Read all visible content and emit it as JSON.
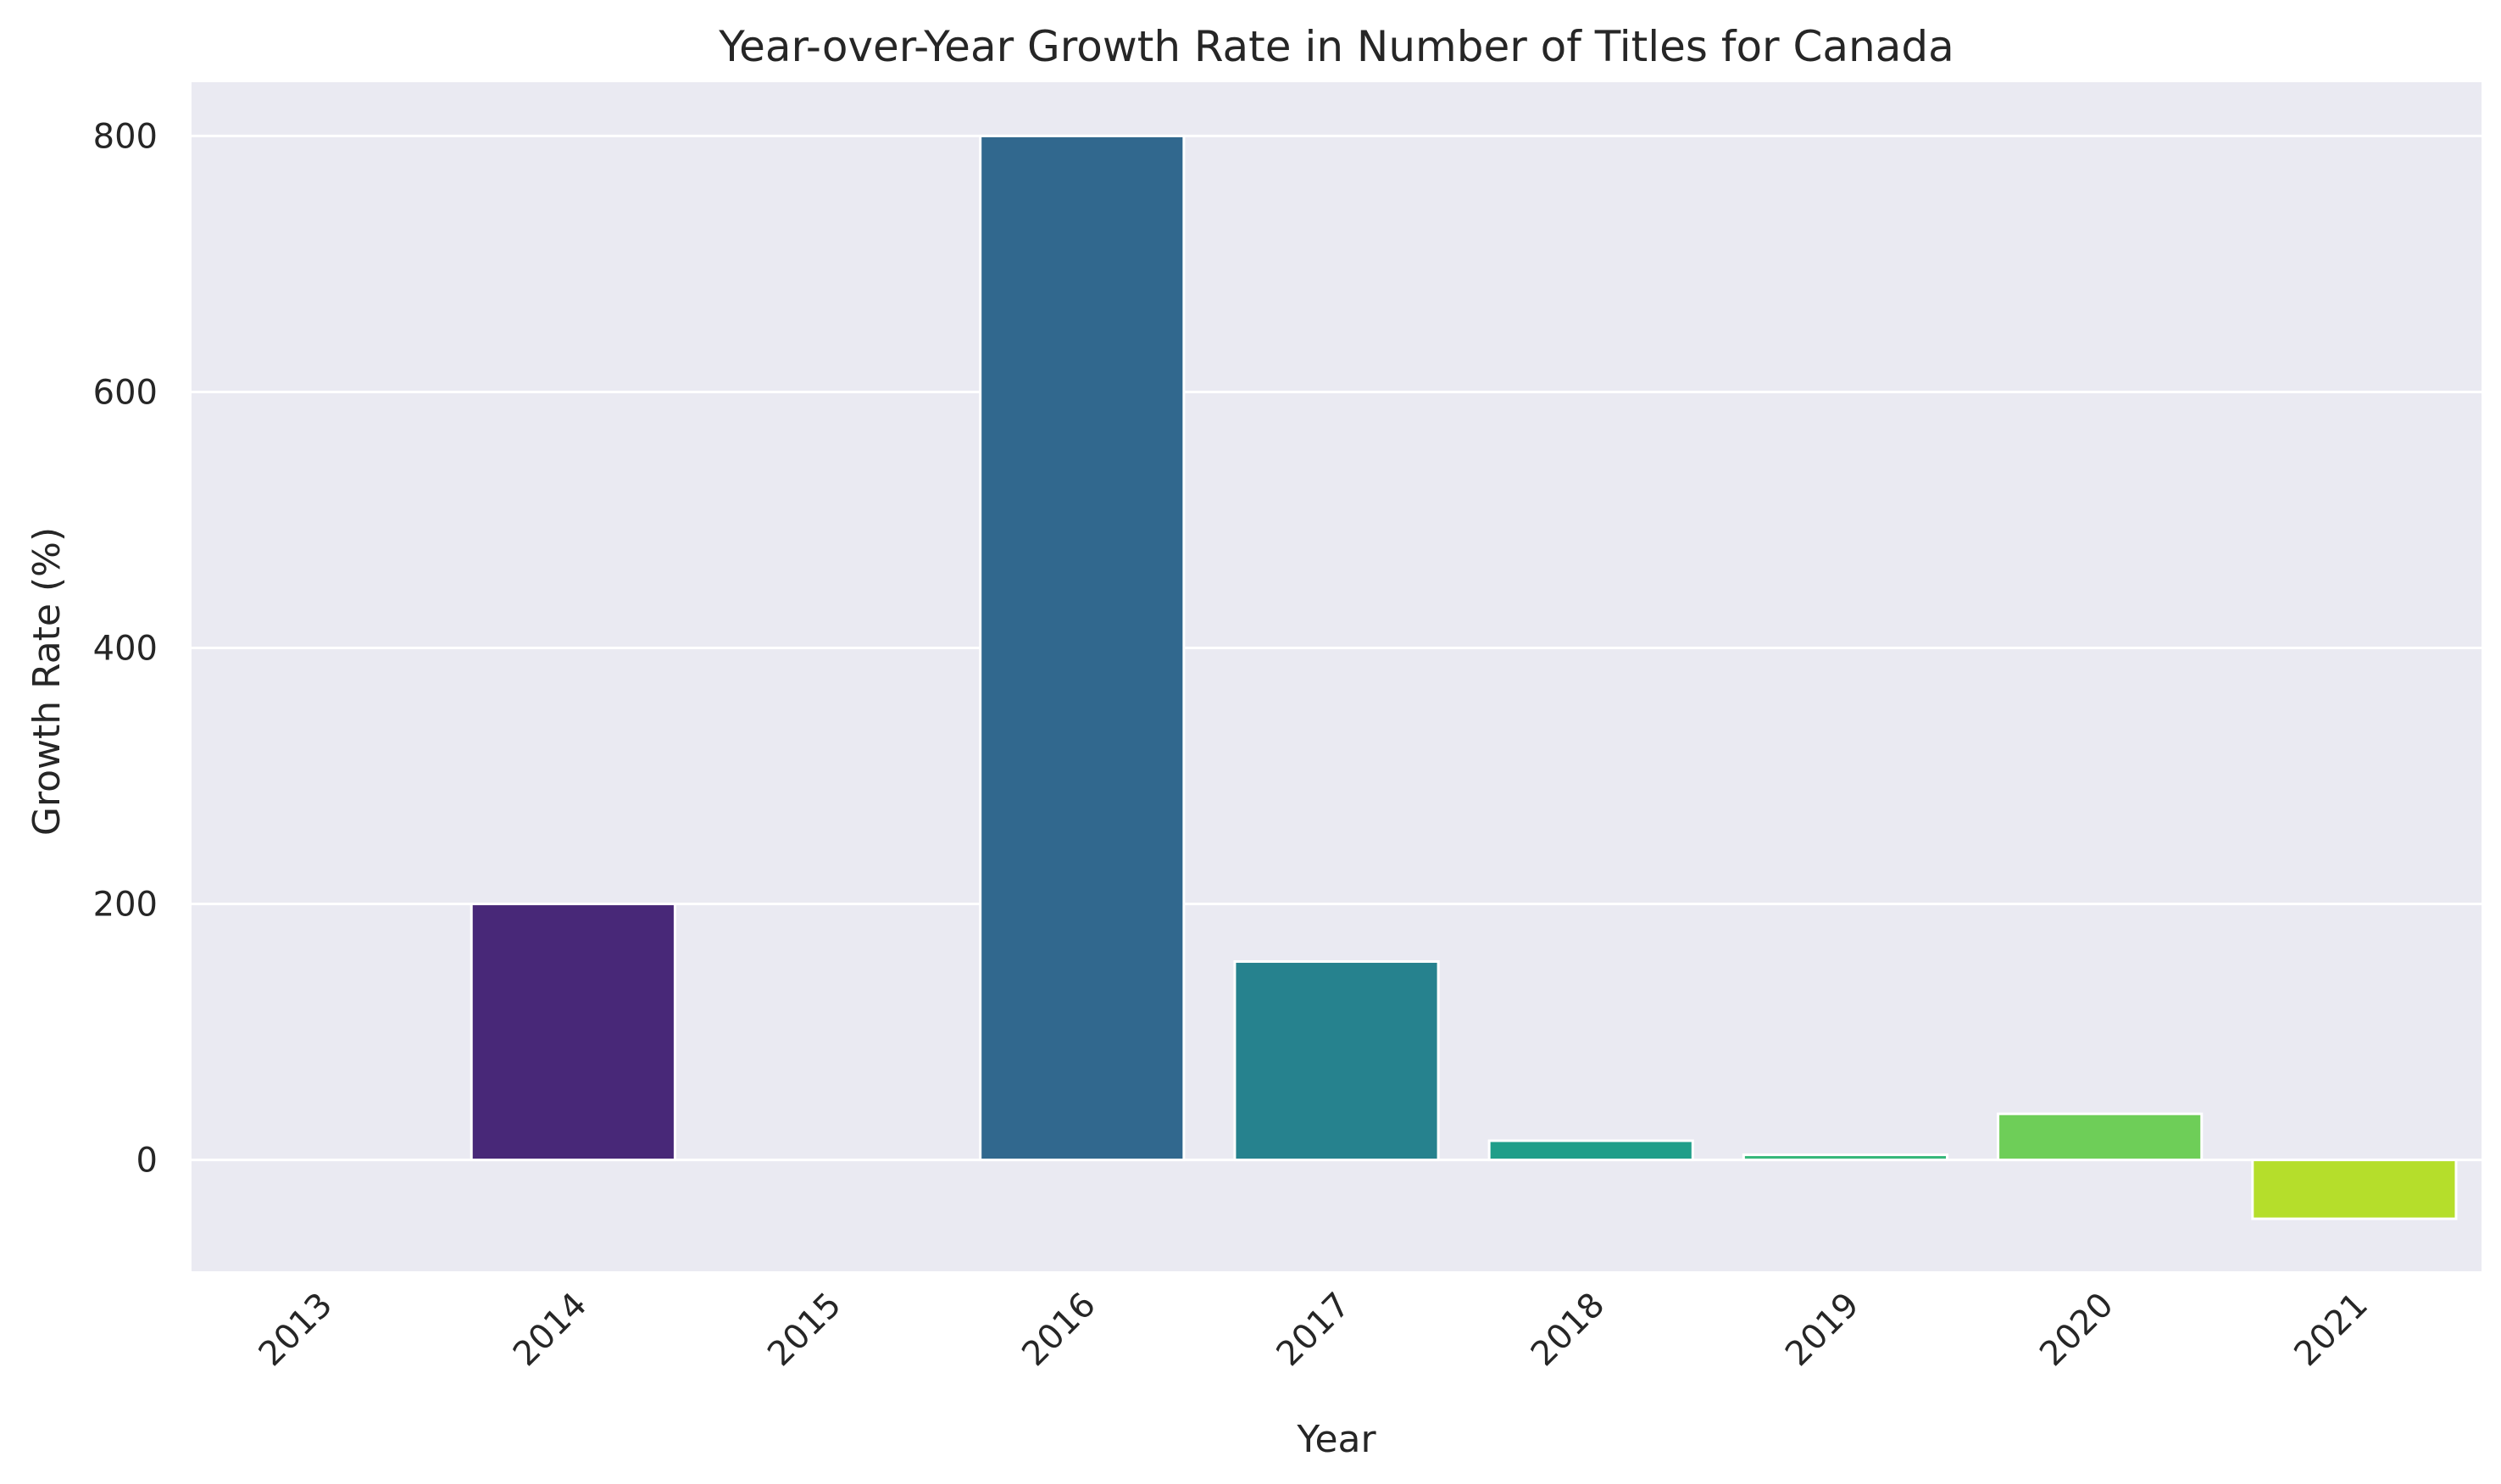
{
  "chart_data": {
    "type": "bar",
    "title": "Year-over-Year Growth Rate in Number of Titles for Canada",
    "xlabel": "Year",
    "ylabel": "Growth Rate (%)",
    "categories": [
      "2013",
      "2014",
      "2015",
      "2016",
      "2017",
      "2018",
      "2019",
      "2020",
      "2021"
    ],
    "values": [
      0,
      200,
      0,
      800,
      155,
      15,
      4,
      36,
      -46
    ],
    "colors": [
      "#440154",
      "#482878",
      "#3e4a89",
      "#31688e",
      "#26828e",
      "#1f9e89",
      "#35b779",
      "#6ece58",
      "#b5de2b"
    ],
    "ylim": [
      -87,
      842
    ],
    "yticks": [
      0,
      200,
      400,
      600,
      800
    ],
    "ytick_labels": [
      "0",
      "200",
      "400",
      "600",
      "800"
    ],
    "grid": true,
    "legend": "none",
    "background_color": "#eaeaf2",
    "gridline_color": "#ffffff"
  }
}
